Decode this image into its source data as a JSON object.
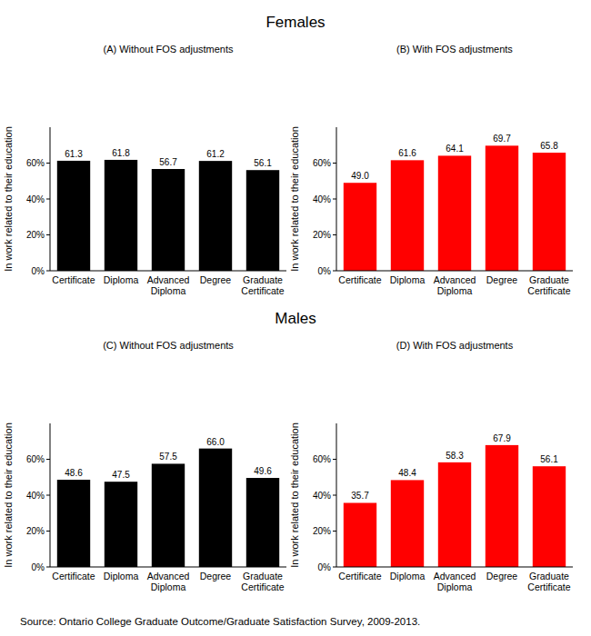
{
  "chart_data": [
    {
      "type": "bar",
      "title": "(A) Without FOS adjustments",
      "ylabel": "In work related to their education",
      "categories": [
        "Certificate",
        "Diploma",
        "Advanced Diploma",
        "Degree",
        "Graduate Certificate"
      ],
      "values": [
        61.3,
        61.8,
        56.7,
        61.2,
        56.1
      ],
      "value_labels": [
        "61.3",
        "61.8",
        "56.7",
        "61.2",
        "56.1"
      ],
      "color": "#000000",
      "ylim": [
        0,
        80
      ],
      "yticks": [
        {
          "value": 0,
          "label": "0%"
        },
        {
          "value": 20,
          "label": "20%"
        },
        {
          "value": 40,
          "label": "40%"
        },
        {
          "value": 60,
          "label": "60%"
        }
      ],
      "grid": false,
      "data_labels": true
    },
    {
      "type": "bar",
      "title": "(B) With FOS adjustments",
      "ylabel": "In work related to their education",
      "categories": [
        "Certificate",
        "Diploma",
        "Advanced Diploma",
        "Degree",
        "Graduate Certificate"
      ],
      "values": [
        49.0,
        61.6,
        64.1,
        69.7,
        65.8
      ],
      "value_labels": [
        "49.0",
        "61.6",
        "64.1",
        "69.7",
        "65.8"
      ],
      "color": "#ff0000",
      "ylim": [
        0,
        80
      ],
      "yticks": [
        {
          "value": 0,
          "label": "0%"
        },
        {
          "value": 20,
          "label": "20%"
        },
        {
          "value": 40,
          "label": "40%"
        },
        {
          "value": 60,
          "label": "60%"
        }
      ],
      "grid": false,
      "data_labels": true
    },
    {
      "type": "bar",
      "title": "(C) Without FOS adjustments",
      "ylabel": "In work related to their education",
      "categories": [
        "Certificate",
        "Diploma",
        "Advanced Diploma",
        "Degree",
        "Graduate Certificate"
      ],
      "values": [
        48.6,
        47.5,
        57.5,
        66.0,
        49.6
      ],
      "value_labels": [
        "48.6",
        "47.5",
        "57.5",
        "66.0",
        "49.6"
      ],
      "color": "#000000",
      "ylim": [
        0,
        80
      ],
      "yticks": [
        {
          "value": 0,
          "label": "0%"
        },
        {
          "value": 20,
          "label": "20%"
        },
        {
          "value": 40,
          "label": "40%"
        },
        {
          "value": 60,
          "label": "60%"
        }
      ],
      "grid": false,
      "data_labels": true
    },
    {
      "type": "bar",
      "title": "(D) With FOS adjustments",
      "ylabel": "In work related to their education",
      "categories": [
        "Certificate",
        "Diploma",
        "Advanced Diploma",
        "Degree",
        "Graduate Certificate"
      ],
      "values": [
        35.7,
        48.4,
        58.3,
        67.9,
        56.1
      ],
      "value_labels": [
        "35.7",
        "48.4",
        "58.3",
        "67.9",
        "56.1"
      ],
      "color": "#ff0000",
      "ylim": [
        0,
        80
      ],
      "yticks": [
        {
          "value": 0,
          "label": "0%"
        },
        {
          "value": 20,
          "label": "20%"
        },
        {
          "value": 40,
          "label": "40%"
        },
        {
          "value": 60,
          "label": "60%"
        }
      ],
      "grid": false,
      "data_labels": true
    }
  ],
  "section_titles": [
    "Females",
    "Males"
  ],
  "source": "Source: Ontario College Graduate Outcome/Graduate Satisfaction Survey, 2009-2013."
}
